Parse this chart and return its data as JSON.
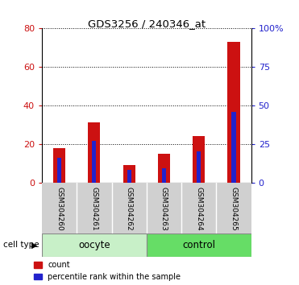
{
  "title": "GDS3256 / 240346_at",
  "samples": [
    "GSM304260",
    "GSM304261",
    "GSM304262",
    "GSM304263",
    "GSM304264",
    "GSM304265"
  ],
  "count_values": [
    18,
    31,
    9,
    15,
    24,
    73
  ],
  "percentile_values": [
    16,
    27,
    8,
    9,
    20,
    46
  ],
  "groups": [
    {
      "label": "oocyte",
      "indices": [
        0,
        1,
        2
      ],
      "color": "#c8f0c8"
    },
    {
      "label": "control",
      "indices": [
        3,
        4,
        5
      ],
      "color": "#66dd66"
    }
  ],
  "count_color": "#cc1111",
  "percentile_color": "#2222cc",
  "left_ylim": [
    0,
    80
  ],
  "right_ylim": [
    0,
    100
  ],
  "left_yticks": [
    0,
    20,
    40,
    60,
    80
  ],
  "right_yticks": [
    0,
    25,
    50,
    75,
    100
  ],
  "right_yticklabels": [
    "0",
    "25",
    "50",
    "75",
    "100%"
  ],
  "left_tick_color": "#cc1111",
  "right_tick_color": "#2222cc",
  "sample_box_color": "#d0d0d0",
  "cell_type_label": "cell type",
  "legend_count": "count",
  "legend_percentile": "percentile rank within the sample"
}
